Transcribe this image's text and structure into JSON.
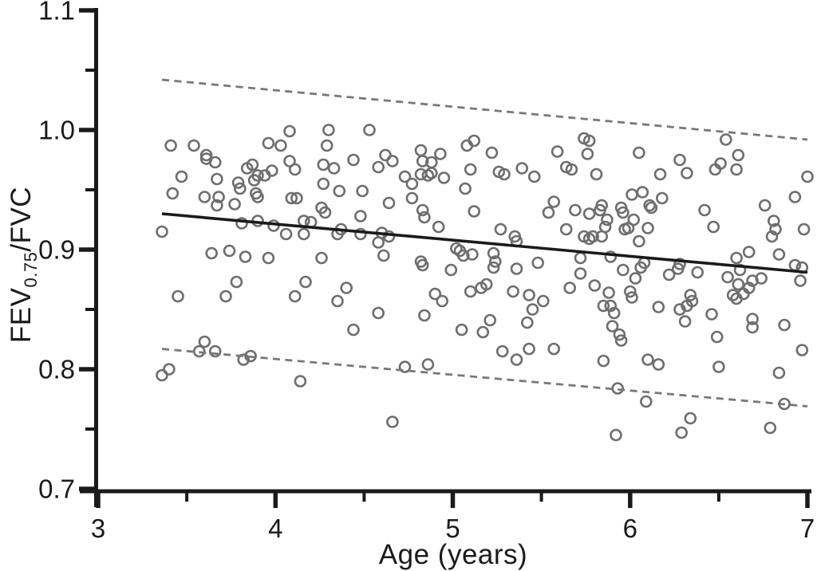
{
  "chart_data": {
    "type": "scatter",
    "title": "",
    "xlabel": "Age (years)",
    "ylabel": {
      "main": "FEV",
      "sub": "0.75",
      "rest": "/FVC"
    },
    "grid": false,
    "legend": "none",
    "marker": {
      "shape": "open-circle",
      "radius_px": 6.5
    },
    "colors": {
      "background": "#ffffff",
      "axis": "#1a1a1a",
      "marker": "#6e6e6e",
      "fit_line": "#1a1a1a",
      "limit_lines": "#787878"
    },
    "x_axis": {
      "range": [
        3,
        7
      ],
      "major_ticks": [
        3,
        4,
        5,
        6,
        7
      ],
      "tick_labels": [
        "3",
        "4",
        "5",
        "6",
        "7"
      ],
      "minor_ticks": [
        3.5,
        4.5,
        5.5,
        6.5
      ]
    },
    "y_axis": {
      "range": [
        0.7,
        1.1
      ],
      "major_ticks": [
        0.7,
        0.8,
        0.9,
        1.0,
        1.1
      ],
      "tick_labels": [
        "0.7",
        "0.8",
        "0.9",
        "1.0",
        "1.1"
      ],
      "minor_ticks": [
        0.75,
        0.85,
        0.95,
        1.05
      ]
    },
    "regression_line": {
      "style": "solid",
      "x": [
        3.36,
        7.0
      ],
      "y": [
        0.93,
        0.881
      ]
    },
    "upper_limit_line": {
      "style": "dashed",
      "x": [
        3.36,
        7.0
      ],
      "y": [
        1.042,
        0.992
      ]
    },
    "lower_limit_line": {
      "style": "dashed",
      "x": [
        3.36,
        7.0
      ],
      "y": [
        0.817,
        0.769
      ]
    },
    "points": [
      [
        3.41,
        0.987
      ],
      [
        3.54,
        0.987
      ],
      [
        3.61,
        0.979
      ],
      [
        3.61,
        0.976
      ],
      [
        3.66,
        0.973
      ],
      [
        3.47,
        0.961
      ],
      [
        3.42,
        0.947
      ],
      [
        3.67,
        0.959
      ],
      [
        3.6,
        0.944
      ],
      [
        3.68,
        0.944
      ],
      [
        3.67,
        0.937
      ],
      [
        3.77,
        0.938
      ],
      [
        3.79,
        0.956
      ],
      [
        3.8,
        0.951
      ],
      [
        3.84,
        0.968
      ],
      [
        3.87,
        0.971
      ],
      [
        3.88,
        0.958
      ],
      [
        3.9,
        0.962
      ],
      [
        3.94,
        0.962
      ],
      [
        3.98,
        0.966
      ],
      [
        3.89,
        0.947
      ],
      [
        3.9,
        0.944
      ],
      [
        3.81,
        0.922
      ],
      [
        3.9,
        0.924
      ],
      [
        3.99,
        0.92
      ],
      [
        3.36,
        0.915
      ],
      [
        3.64,
        0.897
      ],
      [
        3.74,
        0.899
      ],
      [
        3.83,
        0.894
      ],
      [
        3.96,
        0.893
      ],
      [
        3.78,
        0.873
      ],
      [
        3.45,
        0.861
      ],
      [
        3.72,
        0.861
      ],
      [
        3.96,
        0.989
      ],
      [
        3.6,
        0.823
      ],
      [
        3.57,
        0.815
      ],
      [
        3.66,
        0.815
      ],
      [
        3.82,
        0.808
      ],
      [
        3.86,
        0.811
      ],
      [
        3.4,
        0.8
      ],
      [
        3.36,
        0.795
      ],
      [
        4.08,
        0.999
      ],
      [
        4.3,
        1.0
      ],
      [
        4.53,
        1.0
      ],
      [
        4.03,
        0.987
      ],
      [
        4.29,
        0.987
      ],
      [
        4.08,
        0.974
      ],
      [
        4.11,
        0.967
      ],
      [
        4.27,
        0.971
      ],
      [
        4.33,
        0.968
      ],
      [
        4.44,
        0.975
      ],
      [
        4.27,
        0.955
      ],
      [
        4.36,
        0.949
      ],
      [
        4.49,
        0.949
      ],
      [
        4.58,
        0.969
      ],
      [
        4.62,
        0.979
      ],
      [
        4.66,
        0.974
      ],
      [
        4.73,
        0.961
      ],
      [
        4.77,
        0.955
      ],
      [
        4.82,
        0.983
      ],
      [
        4.83,
        0.974
      ],
      [
        4.88,
        0.973
      ],
      [
        4.93,
        0.98
      ],
      [
        4.82,
        0.963
      ],
      [
        4.86,
        0.962
      ],
      [
        4.88,
        0.964
      ],
      [
        4.95,
        0.96
      ],
      [
        4.77,
        0.943
      ],
      [
        4.64,
        0.939
      ],
      [
        4.09,
        0.943
      ],
      [
        4.12,
        0.943
      ],
      [
        4.26,
        0.935
      ],
      [
        4.28,
        0.931
      ],
      [
        4.48,
        0.928
      ],
      [
        4.16,
        0.924
      ],
      [
        4.2,
        0.923
      ],
      [
        4.06,
        0.913
      ],
      [
        4.16,
        0.913
      ],
      [
        4.37,
        0.917
      ],
      [
        4.35,
        0.913
      ],
      [
        4.48,
        0.913
      ],
      [
        4.6,
        0.914
      ],
      [
        4.64,
        0.911
      ],
      [
        4.58,
        0.906
      ],
      [
        4.83,
        0.933
      ],
      [
        4.84,
        0.927
      ],
      [
        4.92,
        0.919
      ],
      [
        4.61,
        0.895
      ],
      [
        4.26,
        0.893
      ],
      [
        4.82,
        0.89
      ],
      [
        4.83,
        0.887
      ],
      [
        4.17,
        0.873
      ],
      [
        4.11,
        0.861
      ],
      [
        4.4,
        0.868
      ],
      [
        4.35,
        0.857
      ],
      [
        4.9,
        0.863
      ],
      [
        4.94,
        0.857
      ],
      [
        4.99,
        0.883
      ],
      [
        4.58,
        0.847
      ],
      [
        4.84,
        0.845
      ],
      [
        4.44,
        0.833
      ],
      [
        4.73,
        0.802
      ],
      [
        4.86,
        0.804
      ],
      [
        4.14,
        0.79
      ],
      [
        4.66,
        0.756
      ],
      [
        5.08,
        0.987
      ],
      [
        5.12,
        0.991
      ],
      [
        5.22,
        0.981
      ],
      [
        5.1,
        0.967
      ],
      [
        5.07,
        0.951
      ],
      [
        5.26,
        0.965
      ],
      [
        5.29,
        0.963
      ],
      [
        5.39,
        0.968
      ],
      [
        5.46,
        0.961
      ],
      [
        5.12,
        0.932
      ],
      [
        5.27,
        0.917
      ],
      [
        5.35,
        0.911
      ],
      [
        5.36,
        0.907
      ],
      [
        5.59,
        0.982
      ],
      [
        5.64,
        0.969
      ],
      [
        5.67,
        0.967
      ],
      [
        5.74,
        0.993
      ],
      [
        5.77,
        0.991
      ],
      [
        5.76,
        0.98
      ],
      [
        5.81,
        0.963
      ],
      [
        5.57,
        0.94
      ],
      [
        5.54,
        0.931
      ],
      [
        5.64,
        0.917
      ],
      [
        5.69,
        0.933
      ],
      [
        5.77,
        0.93
      ],
      [
        5.83,
        0.933
      ],
      [
        5.84,
        0.937
      ],
      [
        5.87,
        0.925
      ],
      [
        5.86,
        0.919
      ],
      [
        5.95,
        0.935
      ],
      [
        5.96,
        0.931
      ],
      [
        6.01,
        0.946
      ],
      [
        5.97,
        0.917
      ],
      [
        5.99,
        0.918
      ],
      [
        5.74,
        0.911
      ],
      [
        5.77,
        0.909
      ],
      [
        5.79,
        0.911
      ],
      [
        5.84,
        0.911
      ],
      [
        5.02,
        0.901
      ],
      [
        5.04,
        0.899
      ],
      [
        5.06,
        0.895
      ],
      [
        5.11,
        0.896
      ],
      [
        5.23,
        0.897
      ],
      [
        5.24,
        0.89
      ],
      [
        5.23,
        0.885
      ],
      [
        5.36,
        0.884
      ],
      [
        5.48,
        0.889
      ],
      [
        5.72,
        0.893
      ],
      [
        5.72,
        0.88
      ],
      [
        5.89,
        0.894
      ],
      [
        5.96,
        0.883
      ],
      [
        5.19,
        0.871
      ],
      [
        5.1,
        0.865
      ],
      [
        5.16,
        0.868
      ],
      [
        5.34,
        0.865
      ],
      [
        5.43,
        0.862
      ],
      [
        5.51,
        0.857
      ],
      [
        5.66,
        0.868
      ],
      [
        5.8,
        0.87
      ],
      [
        5.88,
        0.864
      ],
      [
        5.85,
        0.853
      ],
      [
        5.45,
        0.85
      ],
      [
        5.05,
        0.833
      ],
      [
        5.17,
        0.831
      ],
      [
        5.21,
        0.841
      ],
      [
        5.42,
        0.839
      ],
      [
        5.28,
        0.815
      ],
      [
        5.36,
        0.808
      ],
      [
        5.43,
        0.817
      ],
      [
        5.57,
        0.817
      ],
      [
        5.85,
        0.807
      ],
      [
        5.93,
        0.784
      ],
      [
        5.92,
        0.745
      ],
      [
        5.89,
        0.853
      ],
      [
        5.91,
        0.847
      ],
      [
        5.9,
        0.836
      ],
      [
        5.94,
        0.829
      ],
      [
        5.95,
        0.824
      ],
      [
        6.54,
        0.992
      ],
      [
        6.05,
        0.981
      ],
      [
        6.28,
        0.975
      ],
      [
        6.17,
        0.963
      ],
      [
        6.32,
        0.964
      ],
      [
        6.51,
        0.972
      ],
      [
        6.48,
        0.967
      ],
      [
        6.61,
        0.979
      ],
      [
        6.6,
        0.967
      ],
      [
        7.0,
        0.961
      ],
      [
        6.07,
        0.948
      ],
      [
        6.18,
        0.943
      ],
      [
        6.11,
        0.937
      ],
      [
        6.12,
        0.935
      ],
      [
        6.02,
        0.925
      ],
      [
        6.1,
        0.918
      ],
      [
        6.05,
        0.907
      ],
      [
        6.93,
        0.944
      ],
      [
        6.98,
        0.917
      ],
      [
        6.42,
        0.933
      ],
      [
        6.47,
        0.919
      ],
      [
        6.76,
        0.937
      ],
      [
        6.81,
        0.924
      ],
      [
        6.82,
        0.917
      ],
      [
        6.8,
        0.911
      ],
      [
        6.84,
        0.896
      ],
      [
        6.6,
        0.893
      ],
      [
        6.67,
        0.898
      ],
      [
        6.93,
        0.887
      ],
      [
        6.97,
        0.885
      ],
      [
        6.96,
        0.874
      ],
      [
        6.08,
        0.889
      ],
      [
        6.06,
        0.885
      ],
      [
        6.03,
        0.876
      ],
      [
        6.22,
        0.879
      ],
      [
        6.27,
        0.884
      ],
      [
        6.28,
        0.888
      ],
      [
        6.38,
        0.881
      ],
      [
        6.55,
        0.877
      ],
      [
        6.62,
        0.883
      ],
      [
        6.61,
        0.871
      ],
      [
        6.74,
        0.876
      ],
      [
        6.69,
        0.874
      ],
      [
        6.64,
        0.863
      ],
      [
        6.67,
        0.868
      ],
      [
        6.58,
        0.862
      ],
      [
        6.6,
        0.859
      ],
      [
        6.34,
        0.862
      ],
      [
        6.35,
        0.857
      ],
      [
        6.16,
        0.852
      ],
      [
        6.0,
        0.865
      ],
      [
        6.01,
        0.86
      ],
      [
        6.28,
        0.85
      ],
      [
        6.32,
        0.853
      ],
      [
        6.31,
        0.84
      ],
      [
        6.46,
        0.846
      ],
      [
        6.49,
        0.827
      ],
      [
        6.69,
        0.842
      ],
      [
        6.69,
        0.835
      ],
      [
        6.87,
        0.837
      ],
      [
        6.97,
        0.816
      ],
      [
        6.1,
        0.808
      ],
      [
        6.16,
        0.804
      ],
      [
        6.5,
        0.802
      ],
      [
        6.84,
        0.797
      ],
      [
        6.09,
        0.773
      ],
      [
        6.34,
        0.759
      ],
      [
        6.29,
        0.747
      ],
      [
        6.79,
        0.751
      ],
      [
        6.87,
        0.771
      ]
    ]
  }
}
